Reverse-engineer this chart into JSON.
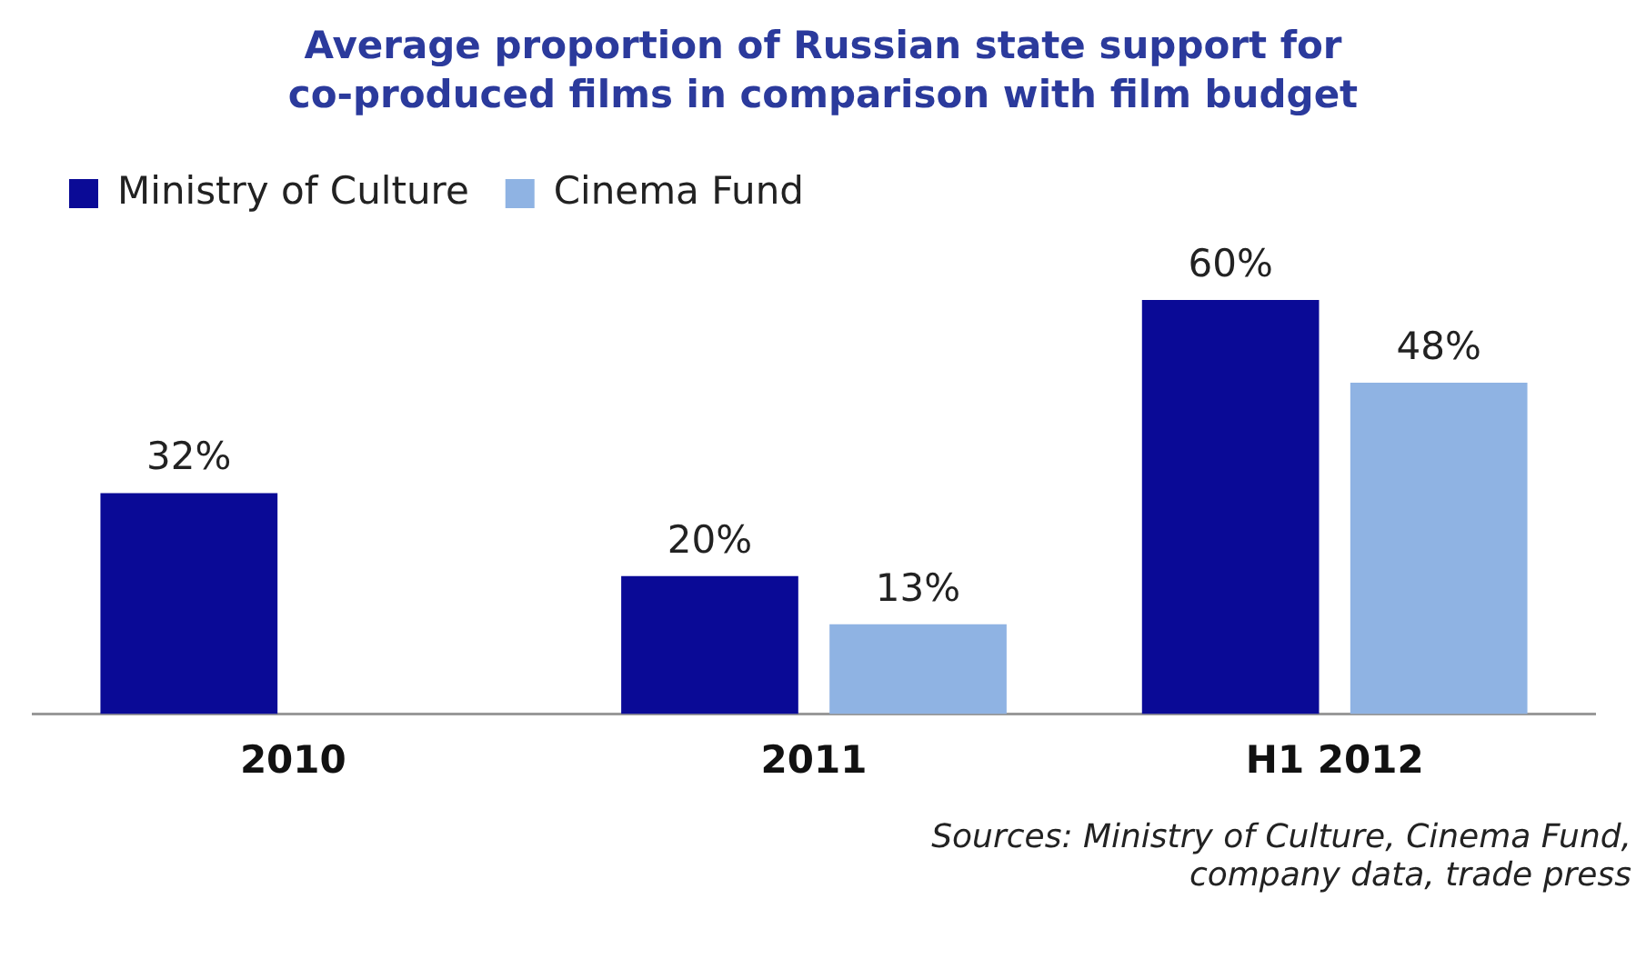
{
  "chart_data": {
    "type": "bar",
    "title": "Average proportion of Russian state support for co-produced films in comparison with film budget",
    "categories": [
      "2010",
      "2011",
      "H1 2012"
    ],
    "series": [
      {
        "name": "Ministry of Culture",
        "color": "#0a0a96",
        "values": [
          32,
          20,
          60
        ],
        "value_labels": [
          "32%",
          "20%",
          "60%"
        ]
      },
      {
        "name": "Cinema Fund",
        "color": "#8fb3e3",
        "values": [
          null,
          13,
          48
        ],
        "value_labels": [
          null,
          "13%",
          "48%"
        ]
      }
    ],
    "legend": "top left",
    "annotations": [
      "Sources: Ministry of Culture, Cinema Fund, company data, trade press"
    ]
  }
}
